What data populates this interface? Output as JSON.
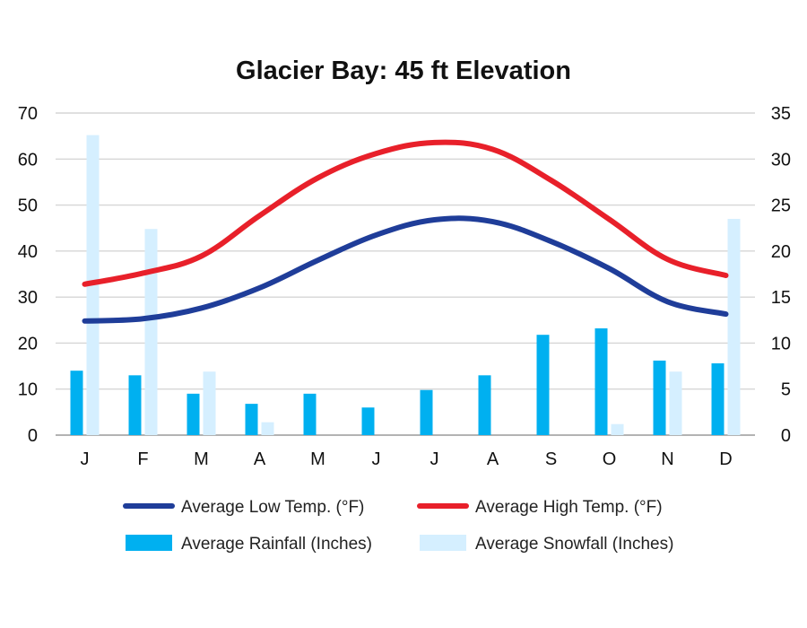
{
  "chart_data": {
    "type": "bar",
    "title": "Glacier Bay: 45 ft Elevation",
    "categories": [
      "J",
      "F",
      "M",
      "A",
      "M",
      "J",
      "J",
      "A",
      "S",
      "O",
      "N",
      "D"
    ],
    "y_left": {
      "ticks": [
        "0",
        "10",
        "20",
        "30",
        "40",
        "50",
        "60",
        "70"
      ],
      "ylim": [
        0,
        70
      ]
    },
    "y_right": {
      "ticks": [
        "0",
        "5",
        "10",
        "15",
        "20",
        "25",
        "30",
        "35"
      ],
      "ylim": [
        0,
        35
      ]
    },
    "grid": true,
    "legend_placement": "bottom",
    "series": [
      {
        "name": "Average Low Temp. (°F)",
        "type": "line",
        "axis": "left",
        "color": "#1f3d99",
        "values": [
          24.8,
          25.3,
          27.6,
          32.0,
          38.0,
          43.5,
          46.8,
          46.4,
          42.1,
          36.2,
          29.0,
          26.3
        ]
      },
      {
        "name": "Average High Temp. (°F)",
        "type": "line",
        "axis": "left",
        "color": "#e8202a",
        "values": [
          32.8,
          35.2,
          38.9,
          47.7,
          55.9,
          61.2,
          63.6,
          62.1,
          55.4,
          46.9,
          38.2,
          34.7
        ]
      },
      {
        "name": "Average Rainfall (Inches)",
        "type": "bar",
        "axis": "right",
        "color": "#00b0f0",
        "values": [
          7.0,
          6.5,
          4.5,
          3.4,
          4.5,
          3.0,
          4.9,
          6.5,
          10.9,
          11.6,
          8.1,
          7.8
        ]
      },
      {
        "name": "Average Snowfall (Inches)",
        "type": "bar",
        "axis": "right",
        "color": "#d5efff",
        "values": [
          32.6,
          22.4,
          6.9,
          1.4,
          0,
          0,
          0,
          0,
          0,
          1.2,
          6.9,
          23.5
        ]
      }
    ]
  }
}
